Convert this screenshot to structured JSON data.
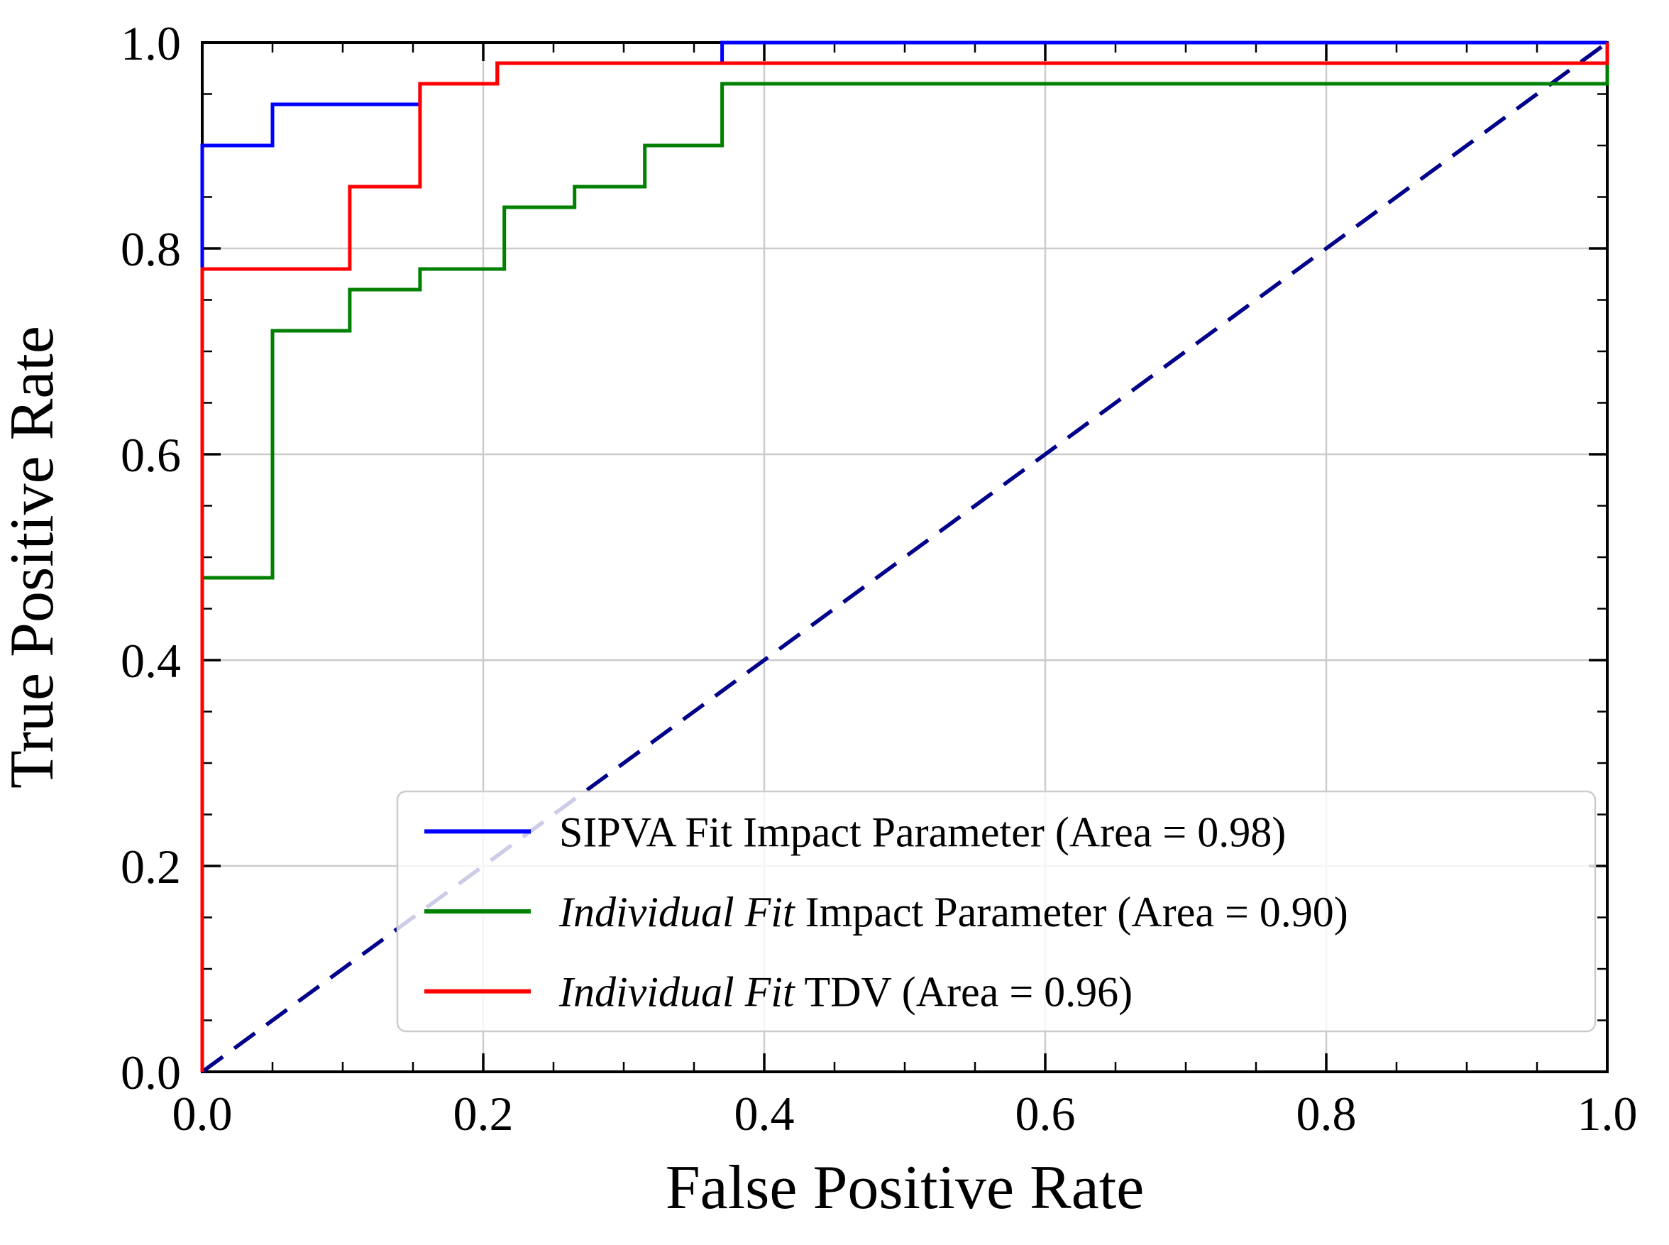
{
  "figure": {
    "background": "#ffffff",
    "frame_color": "#000000",
    "grid_color": "#cccccc",
    "tick_color": "#000000",
    "legend_border_color": "#cccccc"
  },
  "chart_data": {
    "type": "line",
    "subtype": "roc-step-curves",
    "title": "",
    "xlabel": "False Positive Rate",
    "ylabel": "True Positive Rate",
    "xlim": [
      0.0,
      1.0
    ],
    "ylim": [
      0.0,
      1.0
    ],
    "grid": true,
    "legend_position": "lower right",
    "xticks": {
      "values": [
        0.0,
        0.2,
        0.4,
        0.6,
        0.8,
        1.0
      ],
      "labels": [
        "0.0",
        "0.2",
        "0.4",
        "0.6",
        "0.8",
        "1.0"
      ]
    },
    "yticks": {
      "values": [
        0.0,
        0.2,
        0.4,
        0.6,
        0.8,
        1.0
      ],
      "labels": [
        "0.0",
        "0.2",
        "0.4",
        "0.6",
        "0.8",
        "1.0"
      ]
    },
    "series": [
      {
        "name": "SIPVA Fit Impact Parameter (Area = 0.98)",
        "legend_italic": "",
        "legend_text": "SIPVA Fit Impact Parameter (Area = 0.98)",
        "color": "#0000ff",
        "area": 0.98,
        "points": [
          [
            0,
            0
          ],
          [
            0,
            0.9
          ],
          [
            0.05,
            0.9
          ],
          [
            0.05,
            0.94
          ],
          [
            0.155,
            0.94
          ],
          [
            0.155,
            0.96
          ],
          [
            0.21,
            0.96
          ],
          [
            0.21,
            0.98
          ],
          [
            0.37,
            0.98
          ],
          [
            0.37,
            1.0
          ],
          [
            1.0,
            1.0
          ]
        ]
      },
      {
        "name": "Individual Fit Impact Parameter (Area = 0.90)",
        "legend_italic": "Individual Fit",
        "legend_text": " Impact Parameter (Area = 0.90)",
        "color": "#008000",
        "area": 0.9,
        "points": [
          [
            0,
            0
          ],
          [
            0,
            0.48
          ],
          [
            0.05,
            0.48
          ],
          [
            0.05,
            0.72
          ],
          [
            0.105,
            0.72
          ],
          [
            0.105,
            0.76
          ],
          [
            0.155,
            0.76
          ],
          [
            0.155,
            0.78
          ],
          [
            0.215,
            0.78
          ],
          [
            0.215,
            0.84
          ],
          [
            0.265,
            0.84
          ],
          [
            0.265,
            0.86
          ],
          [
            0.315,
            0.86
          ],
          [
            0.315,
            0.9
          ],
          [
            0.37,
            0.9
          ],
          [
            0.37,
            0.96
          ],
          [
            1.0,
            0.96
          ],
          [
            1.0,
            1.0
          ]
        ]
      },
      {
        "name": "Individual Fit TDV (Area = 0.96)",
        "legend_italic": "Individual Fit",
        "legend_text": " TDV (Area = 0.96)",
        "color": "#ff0000",
        "area": 0.96,
        "points": [
          [
            0,
            0
          ],
          [
            0,
            0.78
          ],
          [
            0.105,
            0.78
          ],
          [
            0.105,
            0.86
          ],
          [
            0.155,
            0.86
          ],
          [
            0.155,
            0.96
          ],
          [
            0.21,
            0.96
          ],
          [
            0.21,
            0.98
          ],
          [
            1.0,
            0.98
          ],
          [
            1.0,
            1.0
          ]
        ]
      }
    ],
    "reference_line": {
      "name": "chance-diagonal",
      "color": "#00008b",
      "style": "dashed",
      "points": [
        [
          0,
          0
        ],
        [
          1,
          1
        ]
      ]
    }
  }
}
